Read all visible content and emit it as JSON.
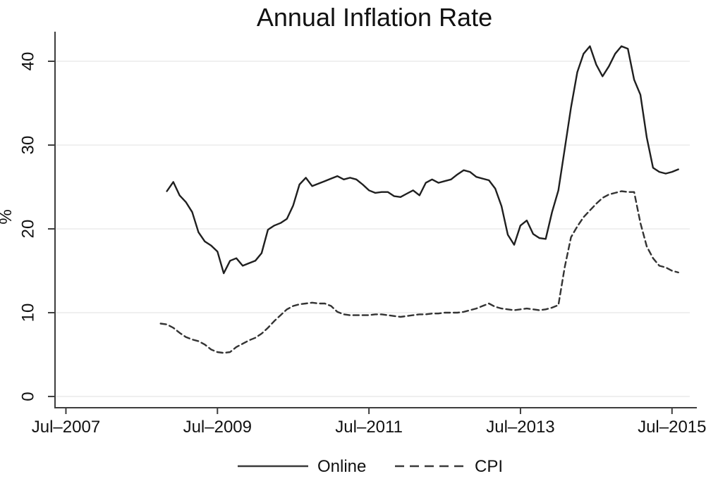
{
  "title": "Annual Inflation Rate",
  "legend": {
    "items": [
      {
        "label": "Online",
        "style": "solid"
      },
      {
        "label": "CPI",
        "style": "dashed"
      }
    ]
  },
  "colors": {
    "online_line": "#1f1f1f",
    "cpi_line": "#333333",
    "gridline": "#e8e8e8",
    "axis": "#3d3d3d",
    "text": "#111111",
    "background": "#ffffff"
  },
  "chart_data": {
    "type": "line",
    "title": "Annual Inflation Rate",
    "xlabel": "",
    "ylabel": "%",
    "grid": true,
    "legend_position": "bottom",
    "x_axis": {
      "min": 2007.356,
      "max": 2015.8,
      "ticks": [
        {
          "pos": 2007.5,
          "label": "Jul–2007"
        },
        {
          "pos": 2009.5,
          "label": "Jul–2009"
        },
        {
          "pos": 2011.5,
          "label": "Jul–2011"
        },
        {
          "pos": 2013.5,
          "label": "Jul–2013"
        },
        {
          "pos": 2015.5,
          "label": "Jul–2015"
        }
      ]
    },
    "y_axis": {
      "min": -1.34,
      "max": 43.53,
      "ticks": [
        {
          "pos": 0,
          "label": "0"
        },
        {
          "pos": 10,
          "label": "10"
        },
        {
          "pos": 20,
          "label": "20"
        },
        {
          "pos": 30,
          "label": "30"
        },
        {
          "pos": 40,
          "label": "40"
        }
      ]
    },
    "series": [
      {
        "name": "Online",
        "style": "solid",
        "x": [
          2008.833,
          2008.917,
          2009.0,
          2009.083,
          2009.167,
          2009.25,
          2009.333,
          2009.417,
          2009.5,
          2009.583,
          2009.667,
          2009.75,
          2009.833,
          2009.917,
          2010.0,
          2010.083,
          2010.167,
          2010.25,
          2010.333,
          2010.417,
          2010.5,
          2010.583,
          2010.667,
          2010.75,
          2010.833,
          2010.917,
          2011.0,
          2011.083,
          2011.167,
          2011.25,
          2011.333,
          2011.417,
          2011.5,
          2011.583,
          2011.667,
          2011.75,
          2011.833,
          2011.917,
          2012.0,
          2012.083,
          2012.167,
          2012.25,
          2012.333,
          2012.417,
          2012.5,
          2012.583,
          2012.667,
          2012.75,
          2012.833,
          2012.917,
          2013.0,
          2013.083,
          2013.167,
          2013.25,
          2013.333,
          2013.417,
          2013.5,
          2013.583,
          2013.667,
          2013.75,
          2013.833,
          2013.917,
          2014.0,
          2014.083,
          2014.167,
          2014.25,
          2014.333,
          2014.417,
          2014.5,
          2014.583,
          2014.667,
          2014.75,
          2014.833,
          2014.917,
          2015.0,
          2015.083,
          2015.167,
          2015.25,
          2015.333,
          2015.417,
          2015.5,
          2015.583
        ],
        "values": [
          24.5,
          25.6,
          24.0,
          23.2,
          22.0,
          19.6,
          18.5,
          18.0,
          17.3,
          14.7,
          16.2,
          16.5,
          15.6,
          15.9,
          16.2,
          17.1,
          19.9,
          20.4,
          20.7,
          21.2,
          22.8,
          25.3,
          26.1,
          25.1,
          25.4,
          25.7,
          26.0,
          26.3,
          25.9,
          26.1,
          25.9,
          25.3,
          24.6,
          24.3,
          24.4,
          24.4,
          23.9,
          23.8,
          24.2,
          24.6,
          24.0,
          25.5,
          25.9,
          25.5,
          25.7,
          25.9,
          26.5,
          27.0,
          26.8,
          26.2,
          26.0,
          25.8,
          24.8,
          22.7,
          19.3,
          18.1,
          20.4,
          21.0,
          19.4,
          18.9,
          18.8,
          22.0,
          24.6,
          29.5,
          34.5,
          38.7,
          40.9,
          41.8,
          39.6,
          38.2,
          39.4,
          40.9,
          41.8,
          41.5,
          37.8,
          36.0,
          30.9,
          27.3,
          26.8,
          26.6,
          26.8,
          27.1
        ]
      },
      {
        "name": "CPI",
        "style": "dashed",
        "x": [
          2008.75,
          2008.833,
          2008.917,
          2009.0,
          2009.083,
          2009.167,
          2009.25,
          2009.333,
          2009.417,
          2009.5,
          2009.583,
          2009.667,
          2009.75,
          2009.833,
          2009.917,
          2010.0,
          2010.083,
          2010.167,
          2010.25,
          2010.333,
          2010.417,
          2010.5,
          2010.583,
          2010.667,
          2010.75,
          2010.833,
          2010.917,
          2011.0,
          2011.083,
          2011.167,
          2011.25,
          2011.333,
          2011.417,
          2011.5,
          2011.583,
          2011.667,
          2011.75,
          2011.833,
          2011.917,
          2012.0,
          2012.083,
          2012.167,
          2012.25,
          2012.333,
          2012.417,
          2012.5,
          2012.583,
          2012.667,
          2012.75,
          2012.833,
          2012.917,
          2013.0,
          2013.083,
          2013.167,
          2013.25,
          2013.333,
          2013.417,
          2013.5,
          2013.583,
          2013.667,
          2013.75,
          2013.833,
          2013.917,
          2014.0,
          2014.083,
          2014.167,
          2014.25,
          2014.333,
          2014.417,
          2014.5,
          2014.583,
          2014.667,
          2014.75,
          2014.833,
          2014.917,
          2015.0,
          2015.083,
          2015.167,
          2015.25,
          2015.333,
          2015.417,
          2015.5,
          2015.583
        ],
        "values": [
          8.7,
          8.6,
          8.2,
          7.6,
          7.1,
          6.8,
          6.6,
          6.2,
          5.6,
          5.3,
          5.2,
          5.3,
          5.9,
          6.3,
          6.7,
          7.0,
          7.5,
          8.2,
          9.0,
          9.7,
          10.4,
          10.8,
          11.0,
          11.1,
          11.2,
          11.1,
          11.1,
          10.8,
          10.1,
          9.8,
          9.7,
          9.7,
          9.7,
          9.7,
          9.8,
          9.8,
          9.7,
          9.6,
          9.5,
          9.6,
          9.7,
          9.8,
          9.8,
          9.9,
          9.9,
          10.0,
          10.0,
          10.0,
          10.1,
          10.3,
          10.5,
          10.8,
          11.1,
          10.7,
          10.5,
          10.4,
          10.3,
          10.4,
          10.5,
          10.4,
          10.3,
          10.4,
          10.6,
          10.9,
          15.4,
          19.0,
          20.3,
          21.4,
          22.2,
          23.0,
          23.7,
          24.1,
          24.3,
          24.5,
          24.4,
          24.4,
          20.7,
          17.9,
          16.5,
          15.6,
          15.4,
          15.0,
          14.8
        ]
      }
    ]
  }
}
